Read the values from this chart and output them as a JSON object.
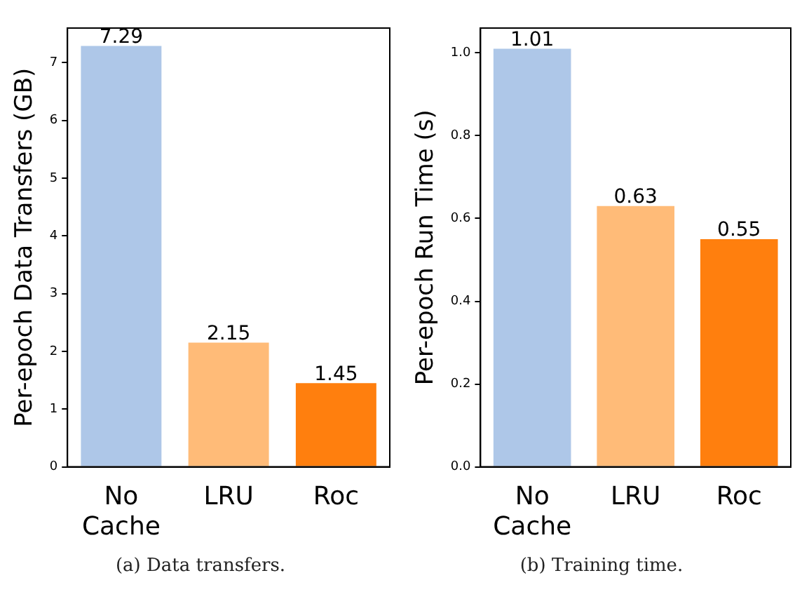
{
  "chart_data": [
    {
      "type": "bar",
      "categories": [
        "No Cache",
        "LRU",
        "Roc"
      ],
      "values": [
        7.29,
        2.15,
        1.45
      ],
      "colors": [
        "#aec7e8",
        "#ffbb78",
        "#ff7f0e"
      ],
      "ylabel": "Per-epoch Data Transfers (GB)",
      "ylim": [
        0,
        7.6
      ],
      "yticks": [
        0,
        1,
        2,
        3,
        4,
        5,
        6,
        7
      ],
      "data_labels": true,
      "grid": false,
      "legend": false,
      "annotations": [
        "(a) Data transfers."
      ]
    },
    {
      "type": "bar",
      "categories": [
        "No Cache",
        "LRU",
        "Roc"
      ],
      "values": [
        1.01,
        0.63,
        0.55
      ],
      "colors": [
        "#aec7e8",
        "#ffbb78",
        "#ff7f0e"
      ],
      "ylabel": "Per-epoch Run Time (s)",
      "ylim": [
        0,
        1.06
      ],
      "yticks": [
        {
          "value": 0,
          "label": "0.0"
        },
        {
          "value": 0.2,
          "label": "0.2"
        },
        {
          "value": 0.4,
          "label": "0.4"
        },
        {
          "value": 0.6,
          "label": "0.6"
        },
        {
          "value": 0.8,
          "label": "0.8"
        },
        {
          "value": 1,
          "label": "1.0"
        }
      ],
      "data_labels": true,
      "grid": false,
      "legend": false,
      "annotations": [
        "(b) Training time."
      ]
    }
  ]
}
